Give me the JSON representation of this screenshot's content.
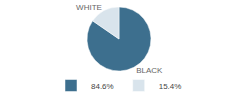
{
  "chart_data": {
    "type": "pie",
    "categories": [
      "BLACK",
      "WHITE"
    ],
    "values": [
      84.6,
      15.4
    ],
    "value_labels": [
      "84.6%",
      "15.4%"
    ],
    "colors": [
      "#3d6f8e",
      "#d9e4ec"
    ],
    "legend": "bottom"
  }
}
